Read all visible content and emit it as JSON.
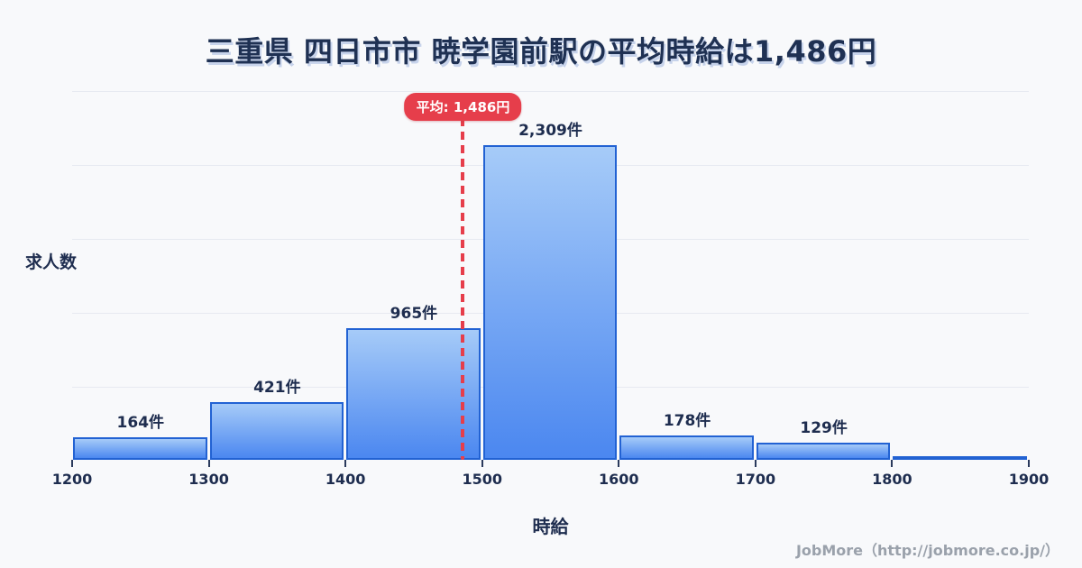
{
  "title": "三重県 四日市市 暁学園前駅の平均時給は1,486円",
  "average": {
    "label": "平均: 1,486円",
    "value": 1486
  },
  "y_axis": {
    "label": "求人数"
  },
  "x_axis": {
    "label": "時給",
    "ticks": [
      "1200",
      "1300",
      "1400",
      "1500",
      "1600",
      "1700",
      "1800",
      "1900"
    ]
  },
  "footer": {
    "credit": "JobMore（http://jobmore.co.jp/）"
  },
  "colors": {
    "background": "#f8f9fb",
    "title_text": "#1f3153",
    "axis_text": "#1e2d4f",
    "gridline": "#e7eaf1",
    "bar_fill_top": "#a6cbf8",
    "bar_fill_bottom": "#4b87f0",
    "bar_border": "#2262d3",
    "average_accent": "#e63e4b",
    "footer_text": "#9aa1ab"
  },
  "chart_data": {
    "type": "bar",
    "title": "三重県 四日市市 暁学園前駅の平均時給は1,486円",
    "xlabel": "時給",
    "ylabel": "求人数",
    "x_range": [
      1200,
      1900
    ],
    "bin_width": 100,
    "categories": [
      "1200-1300",
      "1300-1400",
      "1400-1500",
      "1500-1600",
      "1600-1700",
      "1700-1800",
      "1800-1900"
    ],
    "values": [
      164,
      421,
      965,
      2309,
      178,
      129,
      26
    ],
    "value_labels": [
      "164件",
      "421件",
      "965件",
      "2,309件",
      "178件",
      "129件",
      ""
    ],
    "last_bin_unlabeled": true,
    "average_line": 1486,
    "average_line_label": "平均: 1,486円",
    "grid": "horizontal",
    "gridline_count": 5,
    "legend": "none"
  }
}
